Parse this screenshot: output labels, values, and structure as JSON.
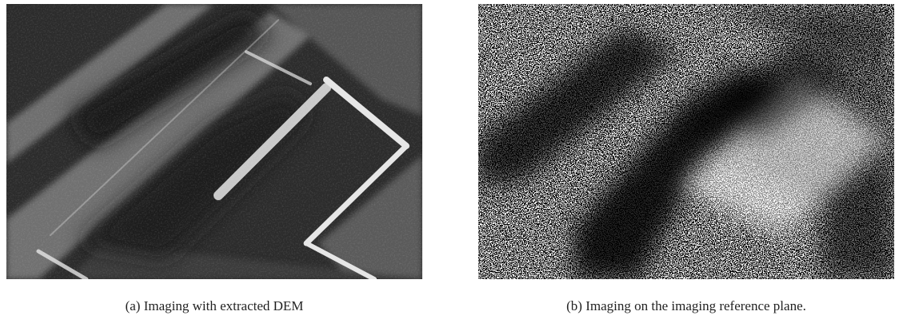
{
  "figure": {
    "panels": [
      {
        "caption": "(a) Imaging with extracted DEM"
      },
      {
        "caption": "(b) Imaging on the imaging reference plane."
      }
    ]
  }
}
